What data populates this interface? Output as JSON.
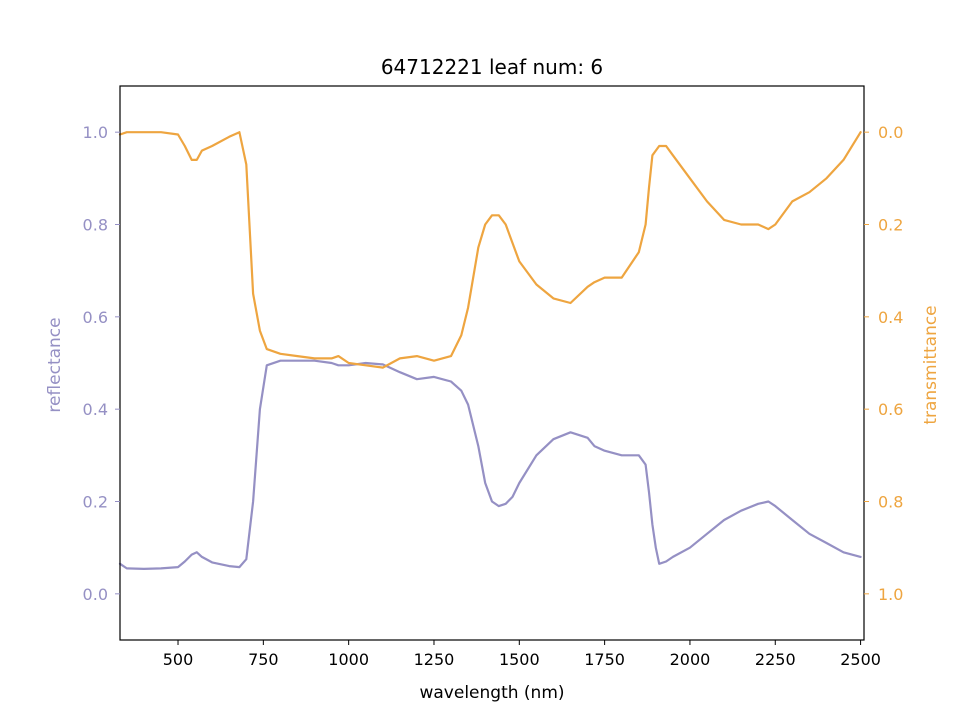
{
  "chart_data": {
    "type": "line",
    "title": "64712221 leaf num: 6",
    "xlabel": "wavelength (nm)",
    "ylabel_left": "reflectance",
    "ylabel_right": "transmittance",
    "xlim": [
      330,
      2510
    ],
    "ylim_left": [
      -0.1,
      1.1
    ],
    "ylim_right": [
      1.1,
      -0.1
    ],
    "right_axis_inverted": true,
    "grid": false,
    "x_ticks": [
      500,
      750,
      1000,
      1250,
      1500,
      1750,
      2000,
      2250,
      2500
    ],
    "x_tick_labels": [
      "500",
      "750",
      "1000",
      "1250",
      "1500",
      "1750",
      "2000",
      "2250",
      "2500"
    ],
    "y_left_ticks": [
      0.0,
      0.2,
      0.4,
      0.6,
      0.8,
      1.0
    ],
    "y_left_tick_labels": [
      "0.0",
      "0.2",
      "0.4",
      "0.6",
      "0.8",
      "1.0"
    ],
    "y_right_ticks": [
      0.0,
      0.2,
      0.4,
      0.6,
      0.8,
      1.0
    ],
    "y_right_tick_labels": [
      "0.0",
      "0.2",
      "0.4",
      "0.6",
      "0.8",
      "1.0"
    ],
    "colors": {
      "reflectance": "#9590c4",
      "transmittance": "#eea540"
    },
    "series": [
      {
        "axis": "left",
        "x": [
          330,
          350,
          400,
          450,
          500,
          520,
          540,
          555,
          570,
          600,
          650,
          680,
          700,
          720,
          740,
          760,
          800,
          850,
          900,
          950,
          970,
          1000,
          1050,
          1100,
          1150,
          1200,
          1250,
          1300,
          1330,
          1350,
          1380,
          1400,
          1420,
          1440,
          1460,
          1480,
          1500,
          1550,
          1600,
          1650,
          1700,
          1720,
          1750,
          1800,
          1850,
          1870,
          1880,
          1890,
          1900,
          1910,
          1930,
          1950,
          2000,
          2050,
          2100,
          2150,
          2200,
          2230,
          2250,
          2300,
          2350,
          2400,
          2450,
          2500
        ],
        "values": [
          0.065,
          0.055,
          0.054,
          0.055,
          0.058,
          0.07,
          0.085,
          0.09,
          0.08,
          0.068,
          0.06,
          0.058,
          0.075,
          0.2,
          0.4,
          0.495,
          0.505,
          0.505,
          0.505,
          0.5,
          0.495,
          0.495,
          0.5,
          0.497,
          0.48,
          0.465,
          0.47,
          0.46,
          0.44,
          0.41,
          0.32,
          0.24,
          0.2,
          0.19,
          0.195,
          0.21,
          0.24,
          0.3,
          0.335,
          0.35,
          0.338,
          0.32,
          0.31,
          0.3,
          0.3,
          0.28,
          0.22,
          0.15,
          0.1,
          0.065,
          0.07,
          0.08,
          0.1,
          0.13,
          0.16,
          0.18,
          0.195,
          0.2,
          0.19,
          0.16,
          0.13,
          0.11,
          0.09,
          0.08
        ]
      },
      {
        "axis": "right",
        "x": [
          330,
          350,
          400,
          450,
          500,
          520,
          540,
          555,
          570,
          600,
          650,
          680,
          700,
          720,
          740,
          760,
          800,
          850,
          900,
          950,
          970,
          1000,
          1050,
          1100,
          1150,
          1200,
          1250,
          1300,
          1330,
          1350,
          1380,
          1400,
          1420,
          1440,
          1460,
          1480,
          1500,
          1550,
          1600,
          1650,
          1700,
          1720,
          1750,
          1800,
          1850,
          1870,
          1880,
          1890,
          1900,
          1910,
          1930,
          1950,
          2000,
          2050,
          2100,
          2150,
          2200,
          2230,
          2250,
          2300,
          2350,
          2400,
          2450,
          2500
        ],
        "values": [
          0.005,
          0.0,
          0.0,
          0.0,
          0.005,
          0.03,
          0.06,
          0.06,
          0.04,
          0.03,
          0.01,
          0.0,
          0.07,
          0.35,
          0.43,
          0.47,
          0.48,
          0.485,
          0.49,
          0.49,
          0.485,
          0.5,
          0.505,
          0.51,
          0.49,
          0.485,
          0.495,
          0.485,
          0.44,
          0.38,
          0.25,
          0.2,
          0.18,
          0.18,
          0.2,
          0.24,
          0.28,
          0.33,
          0.36,
          0.37,
          0.335,
          0.325,
          0.315,
          0.315,
          0.26,
          0.2,
          0.12,
          0.05,
          0.04,
          0.03,
          0.03,
          0.05,
          0.1,
          0.15,
          0.19,
          0.2,
          0.2,
          0.21,
          0.2,
          0.15,
          0.13,
          0.1,
          0.06,
          0.0
        ]
      }
    ]
  }
}
